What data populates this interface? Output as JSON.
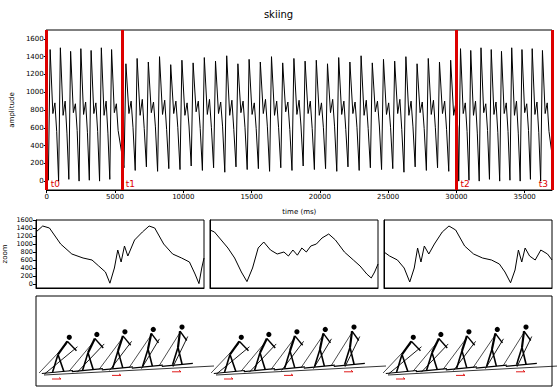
{
  "chart_data": [
    {
      "type": "line",
      "title": "skiing",
      "xlabel": "time (ms)",
      "ylabel": "amplitude",
      "xlim": [
        0,
        37000
      ],
      "ylim": [
        -100,
        1700
      ],
      "xticks": [
        0,
        5000,
        10000,
        15000,
        20000,
        25000,
        30000,
        35000
      ],
      "yticks": [
        0,
        200,
        400,
        600,
        800,
        1000,
        1200,
        1400,
        1600
      ],
      "grid": false,
      "color": "#000000",
      "annotations": [
        {
          "text": "t0",
          "x": 0,
          "color": "#dd0000"
        },
        {
          "text": "t1",
          "x": 5500,
          "color": "#dd0000"
        },
        {
          "text": "t2",
          "x": 30000,
          "color": "#dd0000"
        },
        {
          "text": "t3",
          "x": 37000,
          "color": "#dd0000"
        }
      ],
      "x": [
        0,
        120,
        250,
        450,
        600,
        730,
        870,
        1000,
        1200,
        1350,
        1480,
        1620,
        1750,
        1950,
        2100,
        2230,
        2370,
        2500,
        2700,
        2850,
        2980,
        3120,
        3250,
        3450,
        3600,
        3730,
        3870,
        4000,
        4200,
        4350,
        4480,
        4620,
        4750,
        4950,
        5100,
        5230,
        5660,
        5800,
        6020,
        6180,
        6320,
        6480,
        6620,
        6840,
        7000,
        7140,
        7300,
        7440,
        7660,
        7820,
        7960,
        8120,
        8260,
        8480,
        8640,
        8780,
        8940,
        9080,
        9300,
        9460,
        9600,
        9760,
        9900,
        10120,
        10280,
        10420,
        10580,
        10720,
        10940,
        11100,
        11240,
        11400,
        11540,
        11760,
        11920,
        12060,
        12220,
        12360,
        12580,
        12740,
        12880,
        13040,
        13180,
        13400,
        13560,
        13700,
        13860,
        14000,
        14220,
        14380,
        14520,
        14680,
        14820,
        15040,
        15200,
        15340,
        15500,
        15640,
        15860,
        16020,
        16160,
        16320,
        16460,
        16680,
        16840,
        16980,
        17140,
        17280,
        17500,
        17660,
        17800,
        17960,
        18100,
        18320,
        18480,
        18620,
        18780,
        18920,
        19140,
        19300,
        19440,
        19600,
        19740,
        19960,
        20120,
        20260,
        20420,
        20560,
        20780,
        20940,
        21080,
        21240,
        21380,
        21600,
        21760,
        21900,
        22060,
        22200,
        22420,
        22580,
        22720,
        22880,
        23020,
        23240,
        23400,
        23540,
        23700,
        23840,
        24060,
        24220,
        24360,
        24520,
        24660,
        24880,
        25040,
        25180,
        25340,
        25480,
        25700,
        25860,
        26000,
        26160,
        26300,
        26520,
        26680,
        26820,
        26980,
        27120,
        27340,
        27500,
        27640,
        27800,
        27940,
        28160,
        28320,
        28460,
        28620,
        28760,
        28980,
        29140,
        29280,
        29440,
        29580,
        29800,
        29960,
        30100,
        30170,
        30300,
        30500,
        30650,
        30780,
        30920,
        31050,
        31250,
        31400,
        31530,
        31670,
        31800,
        32000,
        32150,
        32280,
        32420,
        32550,
        32750,
        32900,
        33030,
        33170,
        33300,
        33500,
        33650,
        33780,
        33920,
        34050,
        34250,
        34400,
        34530,
        34670,
        34800,
        35000,
        35150,
        35280,
        35420,
        35550,
        35750,
        35900,
        36030,
        36170,
        36300,
        36500,
        36650,
        36780,
        37000
      ],
      "values": [
        600,
        10,
        1480,
        760,
        880,
        560,
        0,
        1500,
        740,
        900,
        540,
        20,
        1460,
        770,
        870,
        570,
        0,
        1490,
        750,
        890,
        550,
        10,
        1470,
        760,
        880,
        560,
        0,
        1500,
        740,
        900,
        540,
        20,
        1480,
        770,
        870,
        570,
        150,
        1320,
        760,
        900,
        600,
        120,
        1380,
        740,
        920,
        590,
        160,
        1340,
        770,
        890,
        610,
        110,
        1400,
        750,
        910,
        580,
        140,
        1310,
        760,
        900,
        600,
        130,
        1360,
        740,
        880,
        620,
        170,
        1330,
        780,
        900,
        590,
        120,
        1390,
        750,
        920,
        600,
        150,
        1350,
        760,
        890,
        610,
        100,
        1410,
        740,
        910,
        580,
        160,
        1320,
        770,
        900,
        600,
        130,
        1370,
        750,
        880,
        590,
        140,
        1340,
        760,
        920,
        610,
        110,
        1400,
        740,
        900,
        600,
        150,
        1330,
        780,
        890,
        580,
        120,
        1380,
        750,
        910,
        620,
        170,
        1350,
        760,
        900,
        590,
        130,
        1360,
        740,
        880,
        600,
        140,
        1320,
        770,
        920,
        610,
        110,
        1390,
        750,
        900,
        580,
        160,
        1340,
        760,
        890,
        600,
        120,
        1410,
        740,
        910,
        590,
        150,
        1330,
        780,
        900,
        620,
        130,
        1370,
        750,
        880,
        600,
        140,
        1350,
        760,
        920,
        580,
        100,
        1400,
        740,
        900,
        610,
        160,
        1320,
        770,
        890,
        590,
        120,
        1380,
        750,
        910,
        600,
        150,
        1340,
        760,
        900,
        580,
        110,
        1360,
        740,
        880,
        600,
        0,
        1490,
        760,
        880,
        560,
        10,
        1470,
        740,
        900,
        540,
        0,
        1500,
        770,
        870,
        570,
        20,
        1480,
        750,
        890,
        550,
        0,
        1460,
        760,
        880,
        560,
        10,
        1500,
        740,
        900,
        540,
        0,
        1480,
        770,
        870,
        570,
        20,
        1490,
        750,
        890,
        550,
        0,
        1470,
        760,
        880,
        560,
        300
      ]
    },
    {
      "type": "line",
      "ylabel": "zoom",
      "xlim": [
        0,
        1500
      ],
      "ylim": [
        -100,
        1600
      ],
      "yticks": [
        0,
        200,
        400,
        600,
        800,
        1000,
        1200,
        1400,
        1600
      ],
      "tick_labels": "y",
      "grid": false,
      "color": "#000000",
      "x": [
        0,
        60,
        120,
        220,
        320,
        420,
        500,
        560,
        620,
        660,
        700,
        730,
        760,
        790,
        820,
        880,
        950,
        1010,
        1060,
        1140,
        1220,
        1300,
        1370,
        1420,
        1455,
        1480,
        1500
      ],
      "values": [
        1300,
        1450,
        1400,
        1000,
        750,
        650,
        600,
        450,
        300,
        20,
        400,
        850,
        550,
        950,
        700,
        1100,
        1300,
        1450,
        1400,
        1000,
        750,
        650,
        550,
        250,
        10,
        400,
        650
      ]
    },
    {
      "type": "line",
      "xlim": [
        0,
        1500
      ],
      "ylim": [
        -100,
        1600
      ],
      "tick_labels": false,
      "grid": false,
      "color": "#000000",
      "x": [
        0,
        40,
        100,
        160,
        220,
        280,
        330,
        380,
        430,
        480,
        540,
        600,
        660,
        700,
        740,
        780,
        820,
        860,
        900,
        950,
        1000,
        1060,
        1120,
        1200,
        1280,
        1340,
        1400,
        1440,
        1470,
        1500
      ],
      "values": [
        1350,
        1300,
        1100,
        900,
        650,
        300,
        60,
        400,
        900,
        1050,
        850,
        750,
        800,
        700,
        850,
        720,
        900,
        800,
        950,
        1000,
        1150,
        1250,
        1100,
        800,
        600,
        450,
        250,
        150,
        300,
        500
      ]
    },
    {
      "type": "line",
      "xlim": [
        0,
        1500
      ],
      "ylim": [
        -100,
        1600
      ],
      "tick_labels": false,
      "grid": false,
      "color": "#000000",
      "x": [
        0,
        50,
        120,
        180,
        230,
        270,
        300,
        330,
        360,
        400,
        450,
        520,
        580,
        640,
        720,
        800,
        880,
        960,
        1030,
        1080,
        1130,
        1170,
        1200,
        1230,
        1260,
        1300,
        1350,
        1400,
        1460,
        1500
      ],
      "values": [
        800,
        700,
        600,
        400,
        50,
        400,
        900,
        550,
        950,
        750,
        1000,
        1300,
        1450,
        1350,
        950,
        750,
        650,
        600,
        500,
        300,
        30,
        350,
        850,
        550,
        900,
        700,
        600,
        850,
        750,
        600
      ]
    }
  ]
}
